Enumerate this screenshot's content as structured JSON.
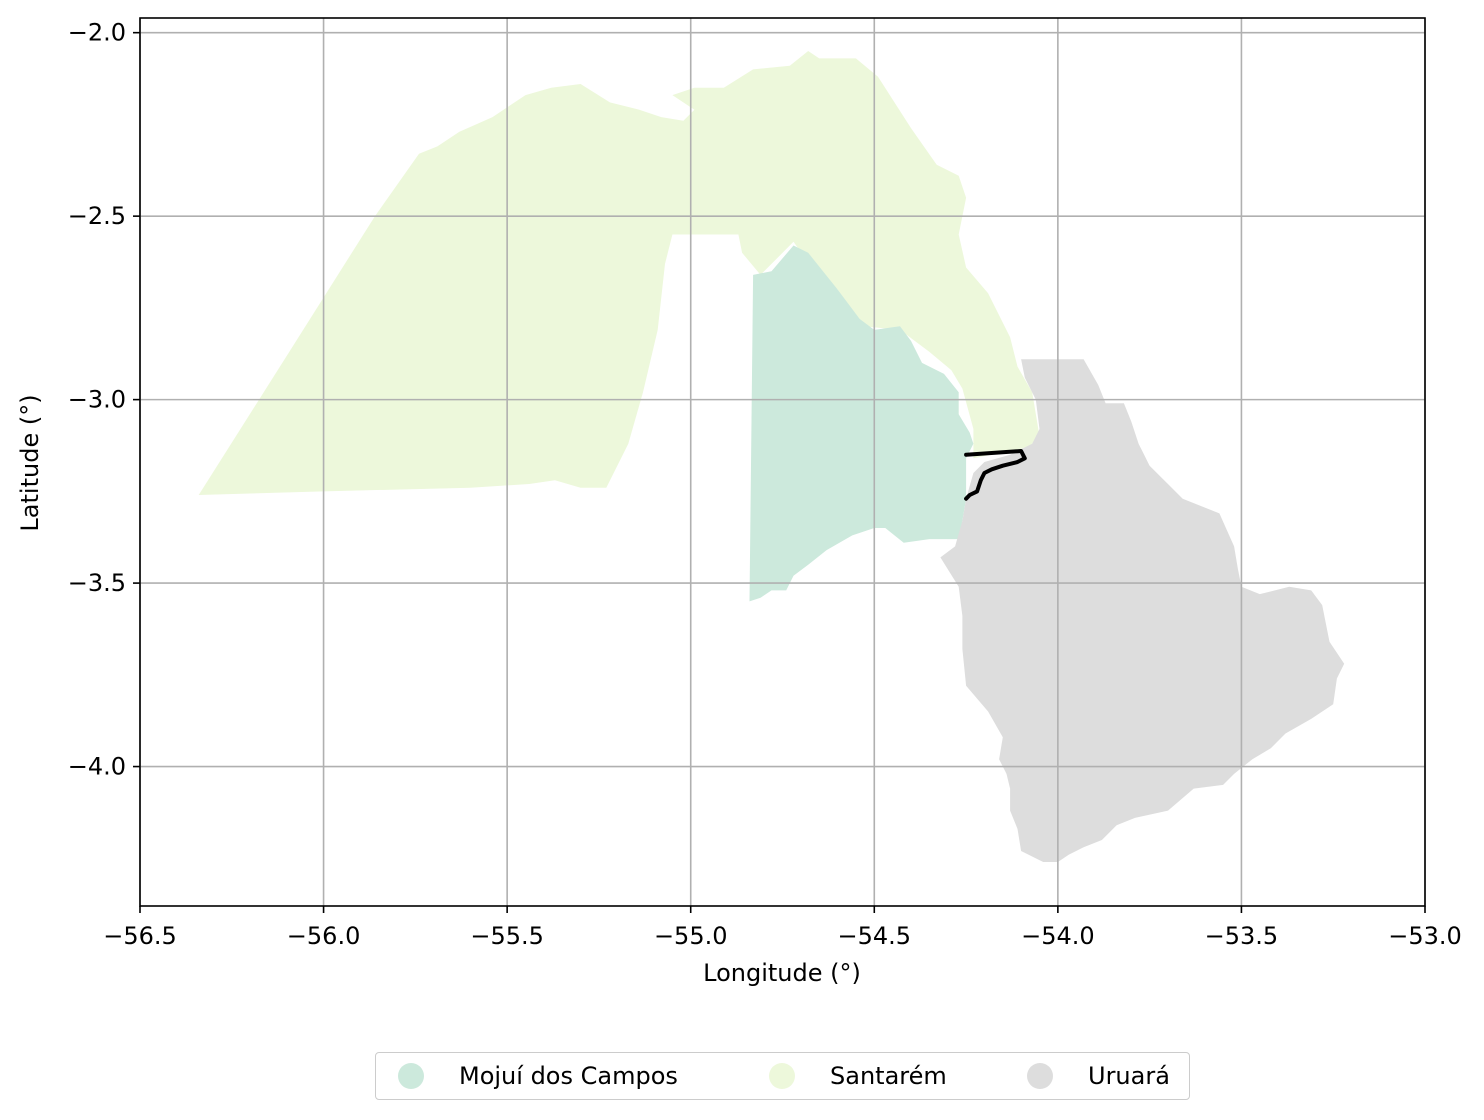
{
  "chart_data": {
    "type": "map",
    "xlabel": "Longitude (°)",
    "ylabel": "Latitude (°)",
    "xlim": [
      -56.5,
      -53.0
    ],
    "ylim": [
      -4.38,
      -1.96
    ],
    "xticks": [
      -56.5,
      -56.0,
      -55.5,
      -55.0,
      -54.5,
      -54.0,
      -53.5,
      -53.0
    ],
    "yticks": [
      -2.0,
      -2.5,
      -3.0,
      -3.5,
      -4.0
    ],
    "xtick_labels": [
      "−56.5",
      "−56.0",
      "−55.5",
      "−55.0",
      "−54.5",
      "−54.0",
      "−53.5",
      "−53.0"
    ],
    "ytick_labels": [
      "−2.0",
      "−2.5",
      "−3.0",
      "−3.5",
      "−4.0"
    ],
    "grid": true,
    "legend_position": "bottom-center",
    "regions": [
      {
        "name": "Santarém",
        "color": "#edf8db",
        "polygon": [
          [
            -56.34,
            -3.26
          ],
          [
            -56.1,
            -2.88
          ],
          [
            -55.86,
            -2.5
          ],
          [
            -55.74,
            -2.33
          ],
          [
            -55.69,
            -2.31
          ],
          [
            -55.63,
            -2.27
          ],
          [
            -55.54,
            -2.23
          ],
          [
            -55.45,
            -2.17
          ],
          [
            -55.38,
            -2.15
          ],
          [
            -55.3,
            -2.14
          ],
          [
            -55.22,
            -2.19
          ],
          [
            -55.14,
            -2.21
          ],
          [
            -55.08,
            -2.23
          ],
          [
            -55.02,
            -2.24
          ],
          [
            -54.99,
            -2.21
          ],
          [
            -55.05,
            -2.17
          ],
          [
            -54.99,
            -2.15
          ],
          [
            -54.91,
            -2.15
          ],
          [
            -54.83,
            -2.1
          ],
          [
            -54.73,
            -2.09
          ],
          [
            -54.68,
            -2.05
          ],
          [
            -54.65,
            -2.07
          ],
          [
            -54.55,
            -2.07
          ],
          [
            -54.49,
            -2.12
          ],
          [
            -54.4,
            -2.26
          ],
          [
            -54.33,
            -2.36
          ],
          [
            -54.27,
            -2.39
          ],
          [
            -54.25,
            -2.45
          ],
          [
            -54.27,
            -2.55
          ],
          [
            -54.25,
            -2.64
          ],
          [
            -54.19,
            -2.71
          ],
          [
            -54.13,
            -2.83
          ],
          [
            -54.11,
            -2.91
          ],
          [
            -54.07,
            -2.98
          ],
          [
            -54.05,
            -3.1
          ],
          [
            -54.08,
            -3.13
          ],
          [
            -54.23,
            -3.16
          ],
          [
            -54.23,
            -3.08
          ],
          [
            -54.26,
            -2.97
          ],
          [
            -54.29,
            -2.92
          ],
          [
            -54.35,
            -2.87
          ],
          [
            -54.43,
            -2.81
          ],
          [
            -54.53,
            -2.8
          ],
          [
            -54.6,
            -2.7
          ],
          [
            -54.67,
            -2.64
          ],
          [
            -54.72,
            -2.57
          ],
          [
            -54.81,
            -2.66
          ],
          [
            -54.86,
            -2.6
          ],
          [
            -54.87,
            -2.55
          ],
          [
            -55.05,
            -2.55
          ],
          [
            -55.07,
            -2.63
          ],
          [
            -55.09,
            -2.81
          ],
          [
            -55.13,
            -2.98
          ],
          [
            -55.17,
            -3.12
          ],
          [
            -55.23,
            -3.24
          ],
          [
            -55.3,
            -3.24
          ],
          [
            -55.37,
            -3.22
          ],
          [
            -55.44,
            -3.23
          ],
          [
            -55.6,
            -3.24
          ],
          [
            -56.0,
            -3.25
          ]
        ]
      },
      {
        "name": "Mojuí dos Campos",
        "color": "#cce9dc",
        "polygon": [
          [
            -54.83,
            -2.66
          ],
          [
            -54.78,
            -2.65
          ],
          [
            -54.72,
            -2.58
          ],
          [
            -54.68,
            -2.6
          ],
          [
            -54.6,
            -2.7
          ],
          [
            -54.54,
            -2.78
          ],
          [
            -54.5,
            -2.81
          ],
          [
            -54.43,
            -2.8
          ],
          [
            -54.4,
            -2.84
          ],
          [
            -54.37,
            -2.9
          ],
          [
            -54.31,
            -2.93
          ],
          [
            -54.27,
            -2.98
          ],
          [
            -54.27,
            -3.04
          ],
          [
            -54.24,
            -3.09
          ],
          [
            -54.23,
            -3.12
          ],
          [
            -54.25,
            -3.16
          ],
          [
            -54.25,
            -3.27
          ],
          [
            -54.26,
            -3.33
          ],
          [
            -54.27,
            -3.38
          ],
          [
            -54.35,
            -3.38
          ],
          [
            -54.42,
            -3.39
          ],
          [
            -54.47,
            -3.35
          ],
          [
            -54.5,
            -3.35
          ],
          [
            -54.56,
            -3.37
          ],
          [
            -54.63,
            -3.41
          ],
          [
            -54.68,
            -3.45
          ],
          [
            -54.72,
            -3.48
          ],
          [
            -54.74,
            -3.52
          ],
          [
            -54.78,
            -3.52
          ],
          [
            -54.81,
            -3.54
          ],
          [
            -54.84,
            -3.55
          ]
        ]
      },
      {
        "name": "Uruará",
        "color": "#dddddd",
        "polygon": [
          [
            -54.1,
            -2.89
          ],
          [
            -53.93,
            -2.89
          ],
          [
            -53.89,
            -2.96
          ],
          [
            -53.87,
            -3.01
          ],
          [
            -53.82,
            -3.01
          ],
          [
            -53.8,
            -3.06
          ],
          [
            -53.78,
            -3.12
          ],
          [
            -53.75,
            -3.18
          ],
          [
            -53.69,
            -3.24
          ],
          [
            -53.66,
            -3.27
          ],
          [
            -53.56,
            -3.31
          ],
          [
            -53.52,
            -3.4
          ],
          [
            -53.51,
            -3.46
          ],
          [
            -53.5,
            -3.51
          ],
          [
            -53.45,
            -3.53
          ],
          [
            -53.37,
            -3.51
          ],
          [
            -53.31,
            -3.52
          ],
          [
            -53.28,
            -3.56
          ],
          [
            -53.26,
            -3.66
          ],
          [
            -53.22,
            -3.72
          ],
          [
            -53.24,
            -3.76
          ],
          [
            -53.25,
            -3.83
          ],
          [
            -53.31,
            -3.87
          ],
          [
            -53.38,
            -3.91
          ],
          [
            -53.42,
            -3.95
          ],
          [
            -53.47,
            -3.98
          ],
          [
            -53.52,
            -4.02
          ],
          [
            -53.55,
            -4.05
          ],
          [
            -53.63,
            -4.06
          ],
          [
            -53.7,
            -4.12
          ],
          [
            -53.79,
            -4.14
          ],
          [
            -53.84,
            -4.16
          ],
          [
            -53.88,
            -4.2
          ],
          [
            -53.93,
            -4.22
          ],
          [
            -53.97,
            -4.24
          ],
          [
            -54.0,
            -4.26
          ],
          [
            -54.04,
            -4.26
          ],
          [
            -54.1,
            -4.23
          ],
          [
            -54.11,
            -4.17
          ],
          [
            -54.13,
            -4.12
          ],
          [
            -54.13,
            -4.06
          ],
          [
            -54.14,
            -4.02
          ],
          [
            -54.16,
            -3.98
          ],
          [
            -54.15,
            -3.92
          ],
          [
            -54.19,
            -3.85
          ],
          [
            -54.25,
            -3.78
          ],
          [
            -54.26,
            -3.68
          ],
          [
            -54.26,
            -3.59
          ],
          [
            -54.27,
            -3.51
          ],
          [
            -54.32,
            -3.43
          ],
          [
            -54.28,
            -3.4
          ],
          [
            -54.26,
            -3.33
          ],
          [
            -54.25,
            -3.27
          ],
          [
            -54.23,
            -3.2
          ],
          [
            -54.2,
            -3.17
          ],
          [
            -54.13,
            -3.15
          ],
          [
            -54.07,
            -3.12
          ],
          [
            -54.05,
            -3.08
          ],
          [
            -54.06,
            -3.0
          ],
          [
            -54.09,
            -2.94
          ]
        ]
      }
    ],
    "highlight": {
      "name": "selected area outline",
      "color": "#000000",
      "polygon": [
        [
          -54.25,
          -3.15
        ],
        [
          -54.1,
          -3.14
        ],
        [
          -54.09,
          -3.16
        ],
        [
          -54.11,
          -3.17
        ],
        [
          -54.15,
          -3.18
        ],
        [
          -54.18,
          -3.19
        ],
        [
          -54.2,
          -3.2
        ],
        [
          -54.21,
          -3.22
        ],
        [
          -54.22,
          -3.25
        ],
        [
          -54.24,
          -3.26
        ],
        [
          -54.25,
          -3.27
        ]
      ]
    }
  },
  "legend": {
    "items": [
      {
        "label": "Mojuí dos Campos",
        "color": "#cce9dc"
      },
      {
        "label": "Santarém",
        "color": "#edf8db"
      },
      {
        "label": "Uruará",
        "color": "#dddddd"
      }
    ]
  }
}
